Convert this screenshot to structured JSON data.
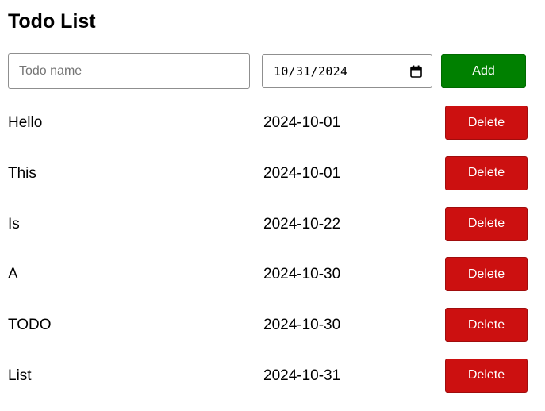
{
  "header": {
    "title": "Todo List"
  },
  "form": {
    "name_placeholder": "Todo name",
    "name_value": "",
    "date_value": "10/31/2024",
    "date_icon": "calendar-icon",
    "add_label": "Add"
  },
  "todos": [
    {
      "name": "Hello",
      "date": "2024-10-01",
      "delete_label": "Delete"
    },
    {
      "name": "This",
      "date": "2024-10-01",
      "delete_label": "Delete"
    },
    {
      "name": "Is",
      "date": "2024-10-22",
      "delete_label": "Delete"
    },
    {
      "name": "A",
      "date": "2024-10-30",
      "delete_label": "Delete"
    },
    {
      "name": "TODO",
      "date": "2024-10-30",
      "delete_label": "Delete"
    },
    {
      "name": "List",
      "date": "2024-10-31",
      "delete_label": "Delete"
    }
  ],
  "colors": {
    "add_button": "#008000",
    "delete_button": "#cc1010",
    "button_text": "#ffffff"
  }
}
